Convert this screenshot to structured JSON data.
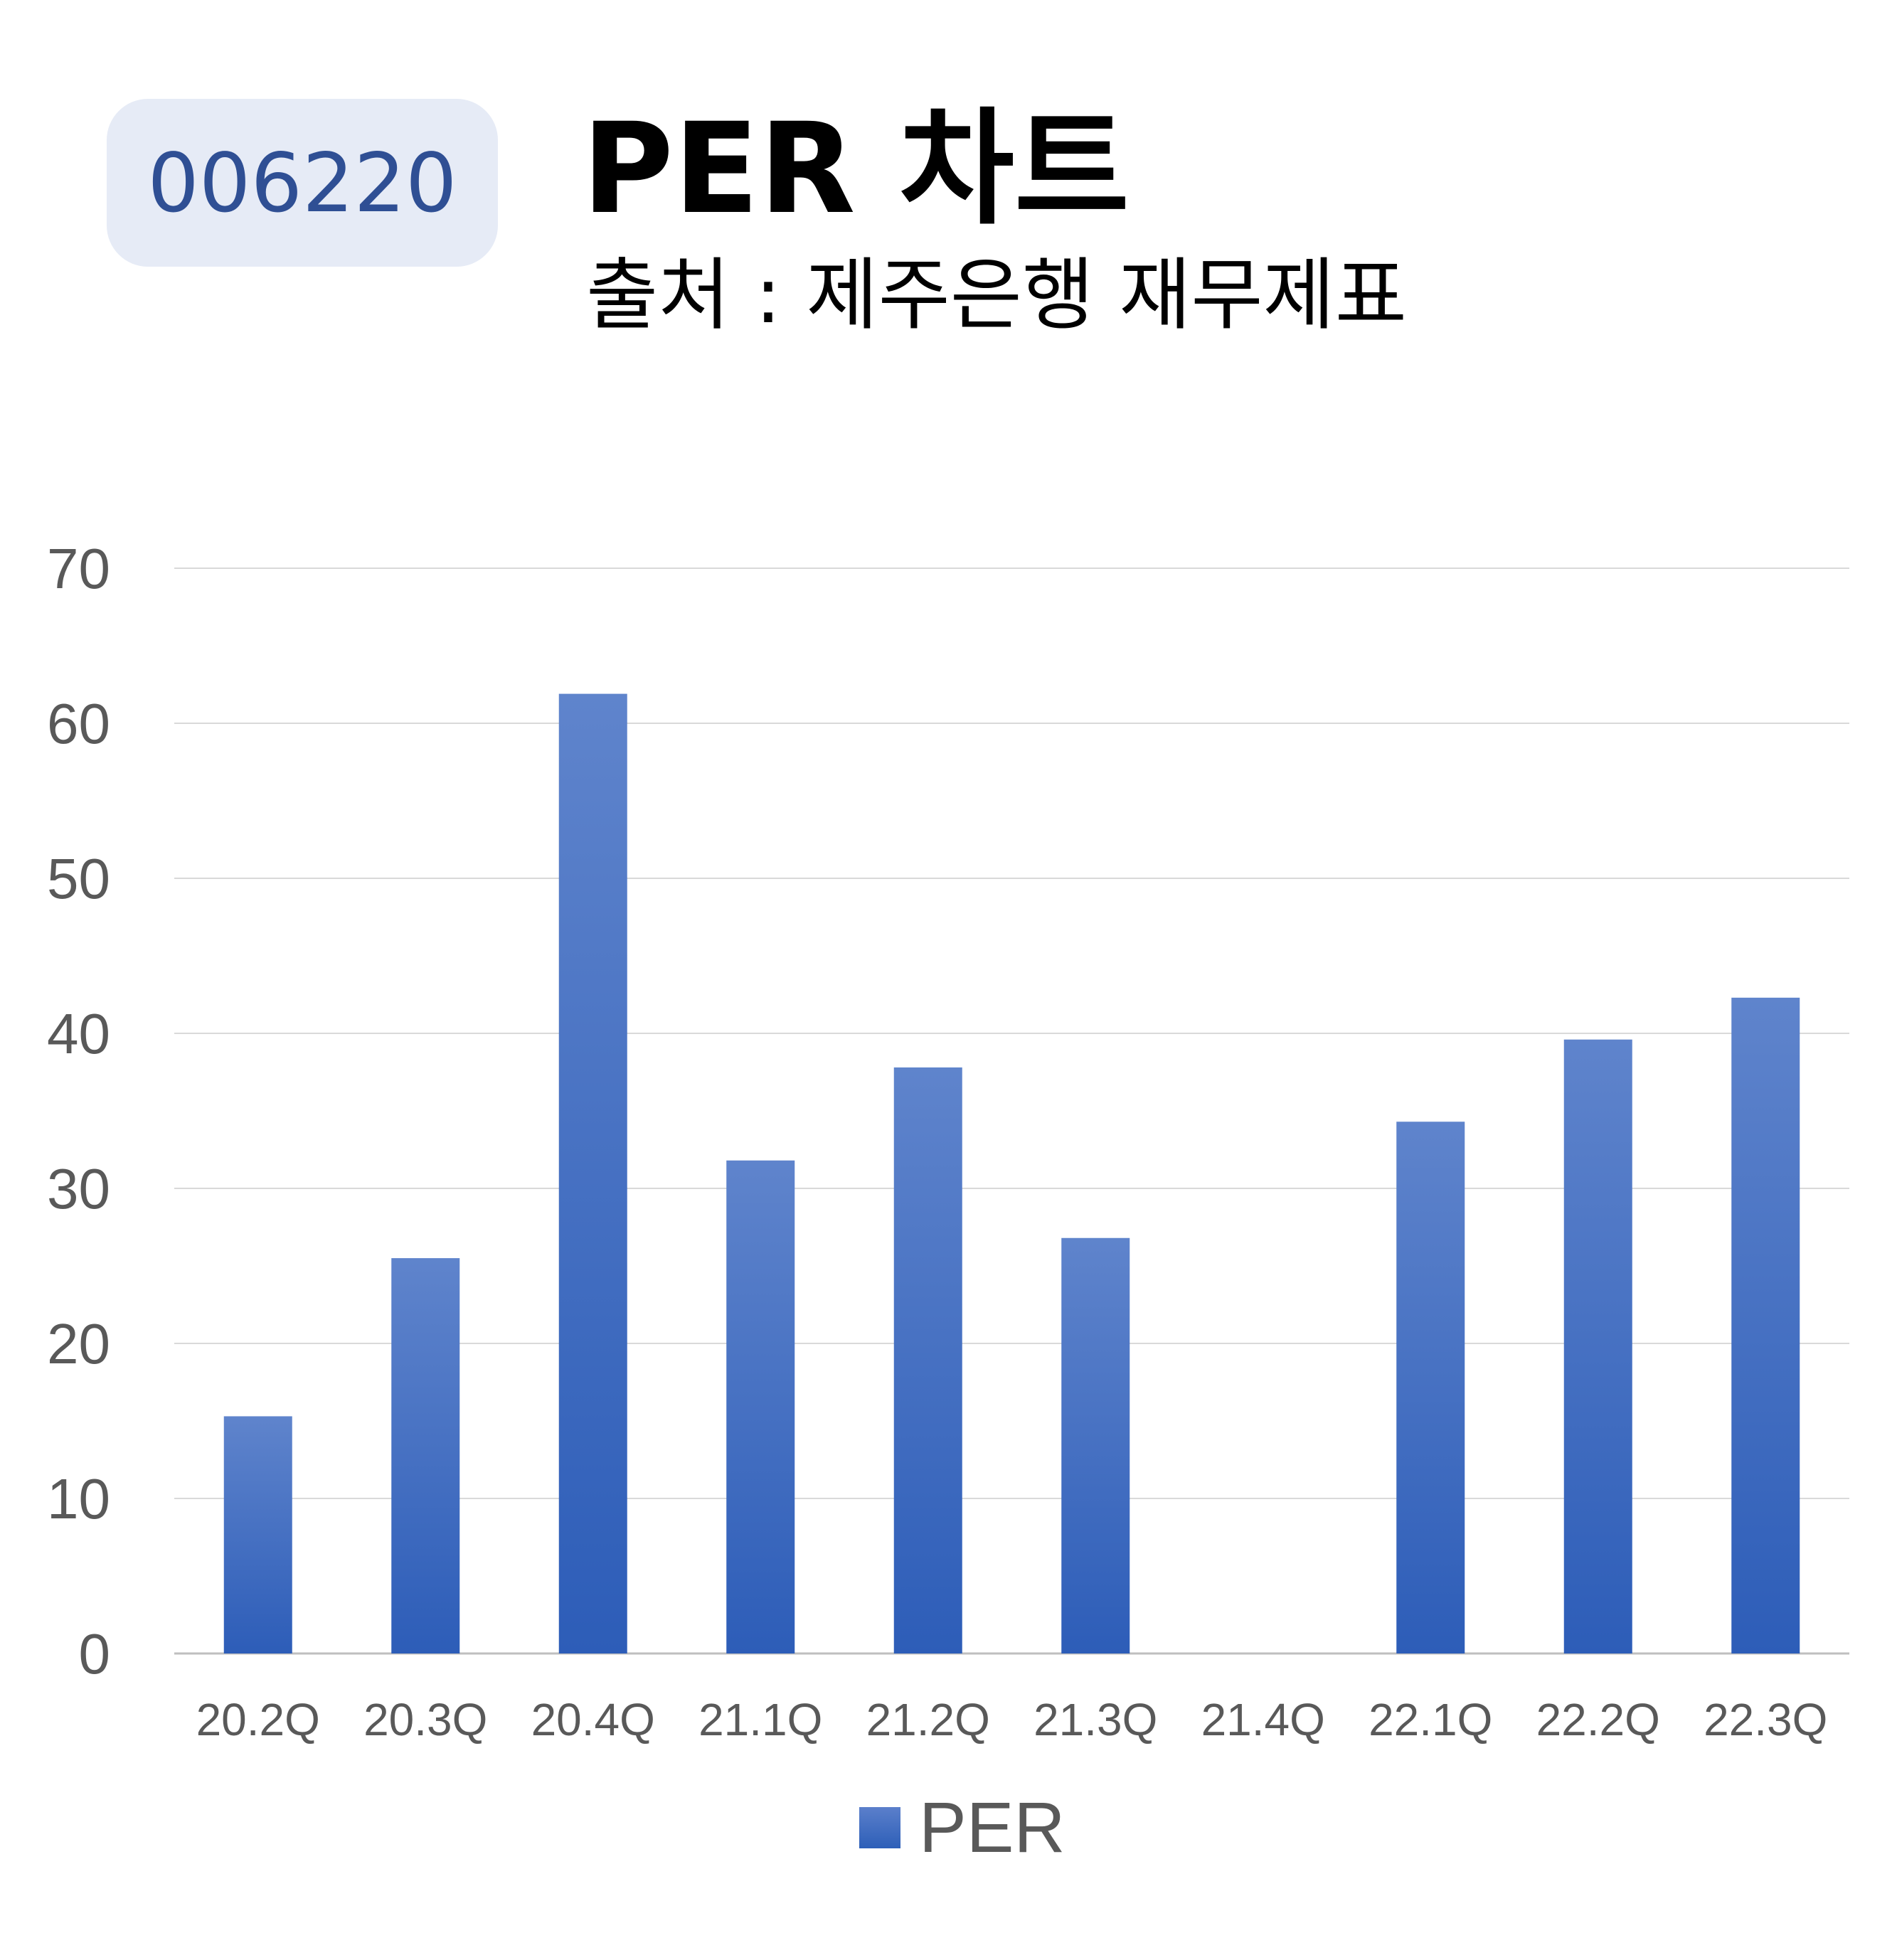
{
  "header": {
    "code": "006220",
    "title": "PER 차트",
    "subtitle": "출처 : 제주은행 재무제표"
  },
  "colors": {
    "bar_top": "#5f84cc",
    "bar_bottom": "#2d5db8",
    "grid": "#d9d9d9",
    "badge_bg": "#e6ebf6",
    "badge_text": "#2f4f94"
  },
  "chart_data": {
    "type": "bar",
    "categories": [
      "20.2Q",
      "20.3Q",
      "20.4Q",
      "21.1Q",
      "21.2Q",
      "21.3Q",
      "21.4Q",
      "22.1Q",
      "22.2Q",
      "22.3Q"
    ],
    "series": [
      {
        "name": "PER",
        "values": [
          15.3,
          25.5,
          61.9,
          31.8,
          37.8,
          26.8,
          null,
          34.3,
          39.6,
          42.3
        ]
      }
    ],
    "ylim": [
      0,
      70
    ],
    "yticks": [
      0,
      10,
      20,
      30,
      40,
      50,
      60,
      70
    ],
    "grid": true,
    "legend": "bottom"
  }
}
